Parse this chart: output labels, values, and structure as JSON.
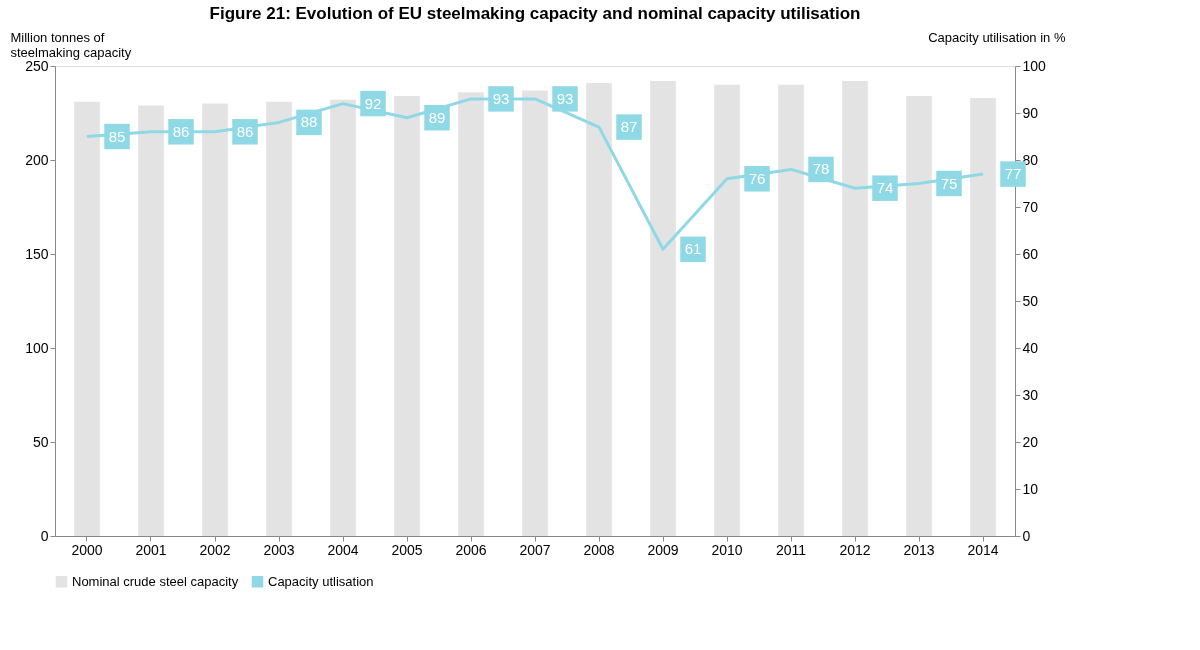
{
  "chart_data": {
    "type": "bar",
    "title": "Figure 21: Evolution of EU steelmaking capacity and nominal capacity utilisation",
    "ylabel": "Million tonnes of steelmaking capacity",
    "y2label": "Capacity utilisation  in %",
    "categories": [
      "2000",
      "2001",
      "2002",
      "2003",
      "2004",
      "2005",
      "2006",
      "2007",
      "2008",
      "2009",
      "2010",
      "2011",
      "2012",
      "2013",
      "2014"
    ],
    "series": [
      {
        "name": "Nominal crude steel capacity",
        "color": "#e3e3e3",
        "values": [
          231,
          229,
          230,
          231,
          232,
          234,
          236,
          237,
          241,
          242,
          240,
          240,
          242,
          234,
          233
        ]
      },
      {
        "name": "Capacity utlisation",
        "type": "line",
        "axis": "y2",
        "color": "#8fd8e6",
        "values": [
          85,
          86,
          86,
          88,
          92,
          89,
          93,
          93,
          87,
          61,
          76,
          78,
          74,
          75,
          77
        ],
        "data_labels": true
      }
    ],
    "ylim": [
      0,
      250
    ],
    "yticks": [
      0,
      50,
      100,
      150,
      200,
      250
    ],
    "y2lim": [
      0,
      100
    ],
    "y2ticks": [
      0,
      10,
      20,
      30,
      40,
      50,
      60,
      70,
      80,
      90,
      100
    ],
    "grid": false,
    "legend": "bottom"
  }
}
